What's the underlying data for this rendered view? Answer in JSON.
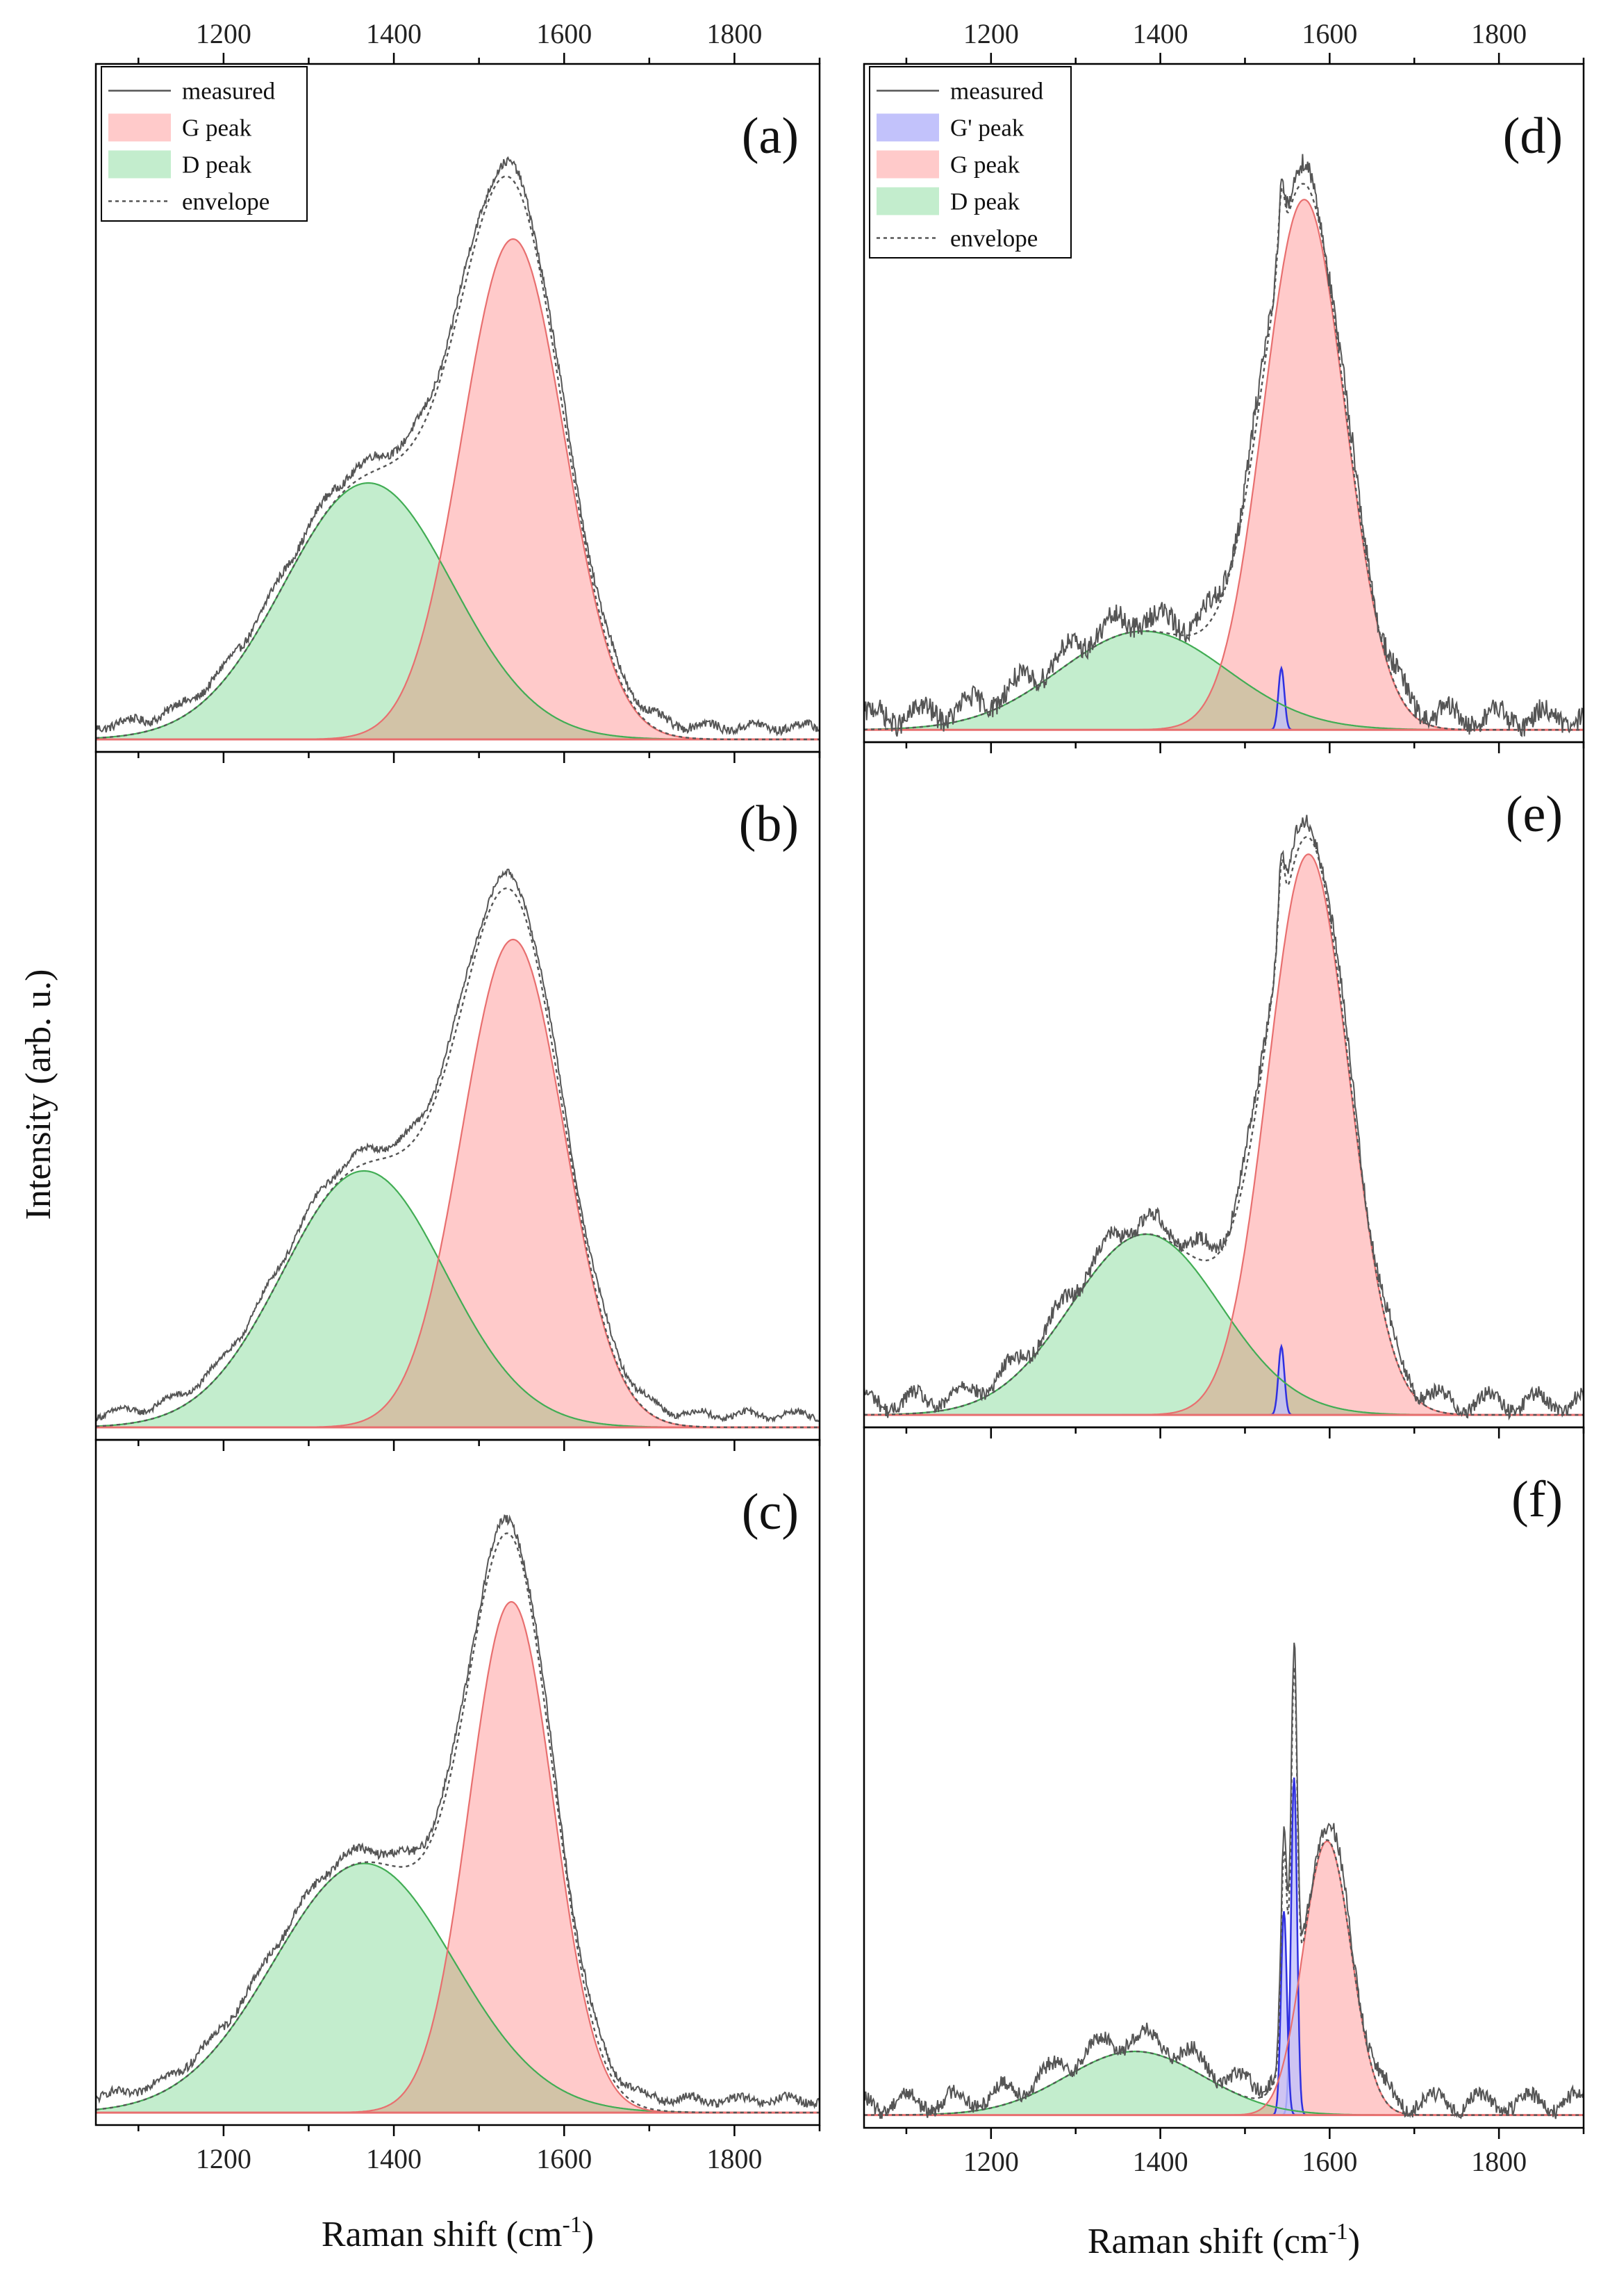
{
  "figure": {
    "y_axis_title": "Intensity (arb. u.)",
    "x_axis_title_base": "Raman shift (cm",
    "x_axis_title_sup": "-1",
    "x_axis_title_close": ")"
  },
  "colors": {
    "measured": "#555555",
    "envelope": "#555555",
    "g_fill": "#ffcaca",
    "g_line": "#e86f6f",
    "d_fill": "#c3edcd",
    "d_line": "#41ad54",
    "gp_fill": "#c2c2fb",
    "gp_line": "#3030e0",
    "overlap_fill": "#d2c3a7"
  },
  "chart_data": [
    {
      "panel": "a",
      "label": "(a)",
      "type": "area",
      "xlim": [
        1050,
        1900
      ],
      "ylim": [
        -0.02,
        1.08
      ],
      "xticks": [
        1200,
        1400,
        1600,
        1800
      ],
      "legend": [
        "measured",
        "G peak",
        "D peak",
        "envelope"
      ],
      "peaks": [
        {
          "name": "G peak",
          "center": 1540,
          "amplitude": 0.8,
          "width": 85
        },
        {
          "name": "D peak",
          "center": 1370,
          "amplitude": 0.41,
          "width": 140
        }
      ],
      "noise": 0.007
    },
    {
      "panel": "b",
      "label": "(b)",
      "type": "area",
      "xlim": [
        1050,
        1900
      ],
      "ylim": [
        -0.02,
        1.08
      ],
      "xticks": [
        1200,
        1400,
        1600,
        1800
      ],
      "legend": [],
      "peaks": [
        {
          "name": "G peak",
          "center": 1540,
          "amplitude": 0.78,
          "width": 85
        },
        {
          "name": "D peak",
          "center": 1365,
          "amplitude": 0.41,
          "width": 135
        }
      ],
      "noise": 0.005
    },
    {
      "panel": "c",
      "label": "(c)",
      "type": "area",
      "xlim": [
        1050,
        1900
      ],
      "ylim": [
        -0.02,
        1.08
      ],
      "xticks": [
        1200,
        1400,
        1600,
        1800
      ],
      "legend": [],
      "peaks": [
        {
          "name": "G peak",
          "center": 1538,
          "amplitude": 0.82,
          "width": 70
        },
        {
          "name": "D peak",
          "center": 1365,
          "amplitude": 0.4,
          "width": 150
        }
      ],
      "noise": 0.007
    },
    {
      "panel": "d",
      "label": "(d)",
      "type": "area",
      "xlim": [
        1050,
        1900
      ],
      "ylim": [
        -0.02,
        1.08
      ],
      "xticks": [
        1200,
        1400,
        1600,
        1800
      ],
      "legend": [
        "measured",
        "G' peak",
        "G peak",
        "D peak",
        "envelope"
      ],
      "peaks": [
        {
          "name": "G' peak",
          "center": 1543,
          "amplitude": 0.1,
          "width": 5
        },
        {
          "name": "G peak",
          "center": 1570,
          "amplitude": 0.86,
          "width": 68
        },
        {
          "name": "D peak",
          "center": 1380,
          "amplitude": 0.16,
          "width": 140
        }
      ],
      "noise": 0.018
    },
    {
      "panel": "e",
      "label": "(e)",
      "type": "area",
      "xlim": [
        1050,
        1900
      ],
      "ylim": [
        -0.02,
        1.08
      ],
      "xticks": [
        1200,
        1400,
        1600,
        1800
      ],
      "legend": [],
      "peaks": [
        {
          "name": "G' peak",
          "center": 1543,
          "amplitude": 0.11,
          "width": 5
        },
        {
          "name": "G peak",
          "center": 1575,
          "amplitude": 0.9,
          "width": 68
        },
        {
          "name": "D peak",
          "center": 1383,
          "amplitude": 0.29,
          "width": 125
        }
      ],
      "noise": 0.012
    },
    {
      "panel": "f",
      "label": "(f)",
      "type": "area",
      "xlim": [
        1050,
        1900
      ],
      "ylim": [
        -0.02,
        1.08
      ],
      "xticks": [
        1200,
        1400,
        1600,
        1800
      ],
      "legend": [],
      "peaks": [
        {
          "name": "G' peak",
          "center": 1558,
          "amplitude": 0.53,
          "width": 5
        },
        {
          "name": "G' peak",
          "center": 1546,
          "amplitude": 0.32,
          "width": 5
        },
        {
          "name": "G peak",
          "center": 1597,
          "amplitude": 0.43,
          "width": 40
        },
        {
          "name": "D peak",
          "center": 1370,
          "amplitude": 0.1,
          "width": 115
        }
      ],
      "noise": 0.012
    }
  ]
}
